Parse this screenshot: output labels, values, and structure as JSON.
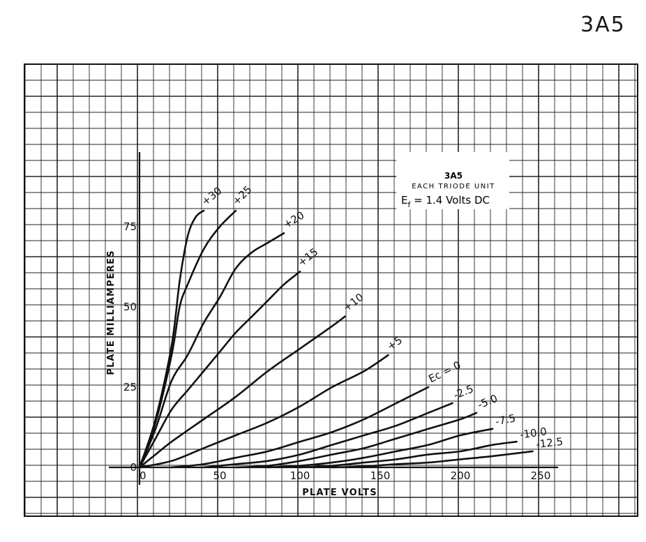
{
  "corner_id": "3A5",
  "infobox": {
    "title": "3A5",
    "subtitle": "EACH TRIODE UNIT",
    "filament": "E_f = 1.4 Volts DC",
    "filament_main": "E",
    "filament_sub": "f",
    "filament_rest": " = 1.4 Volts DC"
  },
  "chart_data": {
    "type": "line",
    "xlabel": "PLATE VOLTS",
    "ylabel": "PLATE MILLIAMPERES",
    "xlim": [
      0,
      250
    ],
    "ylim": [
      0,
      80
    ],
    "x_ticks": [
      "0",
      "50",
      "100",
      "150",
      "200",
      "250"
    ],
    "y_ticks": [
      "0",
      "25",
      "50",
      "75"
    ],
    "grid": true,
    "series": [
      {
        "name": "+30",
        "label": "+30",
        "points": [
          [
            0,
            0
          ],
          [
            10,
            15
          ],
          [
            20,
            38
          ],
          [
            25,
            58
          ],
          [
            30,
            72
          ],
          [
            35,
            78
          ],
          [
            40,
            80
          ]
        ]
      },
      {
        "name": "+25",
        "label": "+25",
        "points": [
          [
            0,
            0
          ],
          [
            10,
            14
          ],
          [
            20,
            35
          ],
          [
            25,
            50
          ],
          [
            30,
            57
          ],
          [
            40,
            68
          ],
          [
            50,
            75
          ],
          [
            60,
            80
          ]
        ]
      },
      {
        "name": "+20",
        "label": "+20",
        "points": [
          [
            0,
            0
          ],
          [
            10,
            12
          ],
          [
            20,
            27
          ],
          [
            30,
            35
          ],
          [
            40,
            45
          ],
          [
            50,
            53
          ],
          [
            60,
            62
          ],
          [
            70,
            67
          ],
          [
            80,
            70
          ],
          [
            90,
            73
          ]
        ]
      },
      {
        "name": "+15",
        "label": "+15",
        "points": [
          [
            0,
            0
          ],
          [
            10,
            9
          ],
          [
            20,
            18
          ],
          [
            30,
            24
          ],
          [
            40,
            30
          ],
          [
            50,
            36
          ],
          [
            60,
            42
          ],
          [
            70,
            47
          ],
          [
            80,
            52
          ],
          [
            90,
            57
          ],
          [
            100,
            61
          ]
        ]
      },
      {
        "name": "+10",
        "label": "+10",
        "points": [
          [
            0,
            0
          ],
          [
            10,
            4
          ],
          [
            20,
            8
          ],
          [
            40,
            15
          ],
          [
            60,
            22
          ],
          [
            80,
            30
          ],
          [
            100,
            37
          ],
          [
            120,
            44
          ],
          [
            128,
            47
          ]
        ]
      },
      {
        "name": "+5",
        "label": "+5",
        "points": [
          [
            0,
            0
          ],
          [
            20,
            2
          ],
          [
            40,
            6
          ],
          [
            60,
            10
          ],
          [
            80,
            14
          ],
          [
            100,
            19
          ],
          [
            120,
            25
          ],
          [
            140,
            30
          ],
          [
            155,
            35
          ]
        ]
      },
      {
        "name": "0",
        "label": "Ec = 0",
        "points": [
          [
            20,
            0
          ],
          [
            40,
            1
          ],
          [
            60,
            3
          ],
          [
            80,
            5
          ],
          [
            100,
            8
          ],
          [
            120,
            11
          ],
          [
            140,
            15
          ],
          [
            160,
            20
          ],
          [
            180,
            25
          ]
        ]
      },
      {
        "name": "-2.5",
        "label": "-2.5",
        "points": [
          [
            40,
            0
          ],
          [
            60,
            1
          ],
          [
            80,
            2
          ],
          [
            100,
            4
          ],
          [
            120,
            7
          ],
          [
            140,
            10
          ],
          [
            160,
            13
          ],
          [
            180,
            17
          ],
          [
            195,
            20
          ]
        ]
      },
      {
        "name": "-5.0",
        "label": "-5.0",
        "points": [
          [
            60,
            0
          ],
          [
            80,
            0.5
          ],
          [
            100,
            2
          ],
          [
            120,
            4
          ],
          [
            140,
            6
          ],
          [
            160,
            9
          ],
          [
            180,
            12
          ],
          [
            200,
            15
          ],
          [
            210,
            17
          ]
        ]
      },
      {
        "name": "-7.5",
        "label": "-7.5",
        "points": [
          [
            80,
            0
          ],
          [
            100,
            0.5
          ],
          [
            120,
            1.5
          ],
          [
            140,
            3
          ],
          [
            160,
            5
          ],
          [
            180,
            7
          ],
          [
            200,
            10
          ],
          [
            220,
            12
          ]
        ]
      },
      {
        "name": "-10.0",
        "label": "-10.0",
        "points": [
          [
            100,
            0
          ],
          [
            120,
            0.5
          ],
          [
            140,
            1.5
          ],
          [
            160,
            2.5
          ],
          [
            180,
            4
          ],
          [
            200,
            5
          ],
          [
            220,
            7
          ],
          [
            235,
            8
          ]
        ]
      },
      {
        "name": "-12.5",
        "label": "-12.5",
        "points": [
          [
            120,
            0
          ],
          [
            140,
            0.3
          ],
          [
            160,
            1
          ],
          [
            180,
            1.5
          ],
          [
            200,
            2.5
          ],
          [
            220,
            3.5
          ],
          [
            245,
            5
          ]
        ]
      }
    ]
  }
}
